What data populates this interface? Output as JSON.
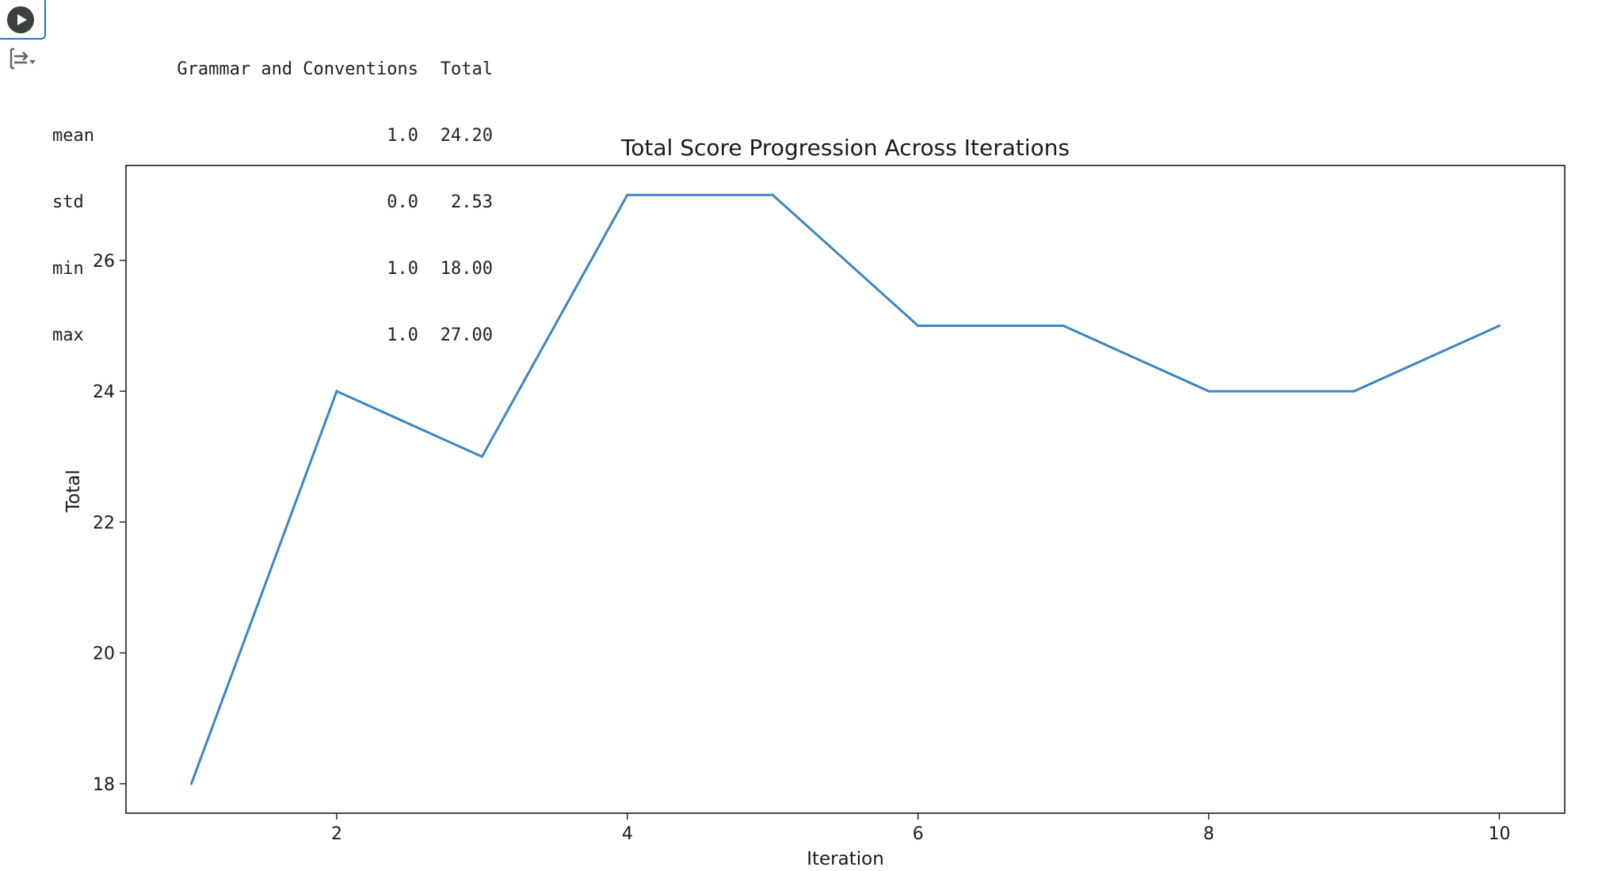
{
  "cell": {
    "run_icon": "play-circle-icon",
    "output_toggle_icon": "output-toggle-icon"
  },
  "describe_table": {
    "columns": [
      "Grammar and Conventions",
      "Total"
    ],
    "rows": [
      {
        "stat": "mean",
        "values": [
          "1.0",
          "24.20"
        ]
      },
      {
        "stat": "std",
        "values": [
          "0.0",
          "2.53"
        ]
      },
      {
        "stat": "min",
        "values": [
          "1.0",
          "18.00"
        ]
      },
      {
        "stat": "max",
        "values": [
          "1.0",
          "27.00"
        ]
      }
    ]
  },
  "chart_data": {
    "type": "line",
    "title": "Total Score Progression Across Iterations",
    "xlabel": "Iteration",
    "ylabel": "Total",
    "x": [
      1,
      2,
      3,
      4,
      5,
      6,
      7,
      8,
      9,
      10
    ],
    "y": [
      18,
      24,
      23,
      27,
      27,
      25,
      25,
      24,
      24,
      25
    ],
    "xticks": [
      2,
      4,
      6,
      8,
      10
    ],
    "yticks": [
      18,
      20,
      22,
      24,
      26
    ],
    "xlim": [
      0.55,
      10.45
    ],
    "ylim": [
      17.55,
      27.45
    ],
    "grid": false,
    "line_color": "#3a86c2"
  }
}
